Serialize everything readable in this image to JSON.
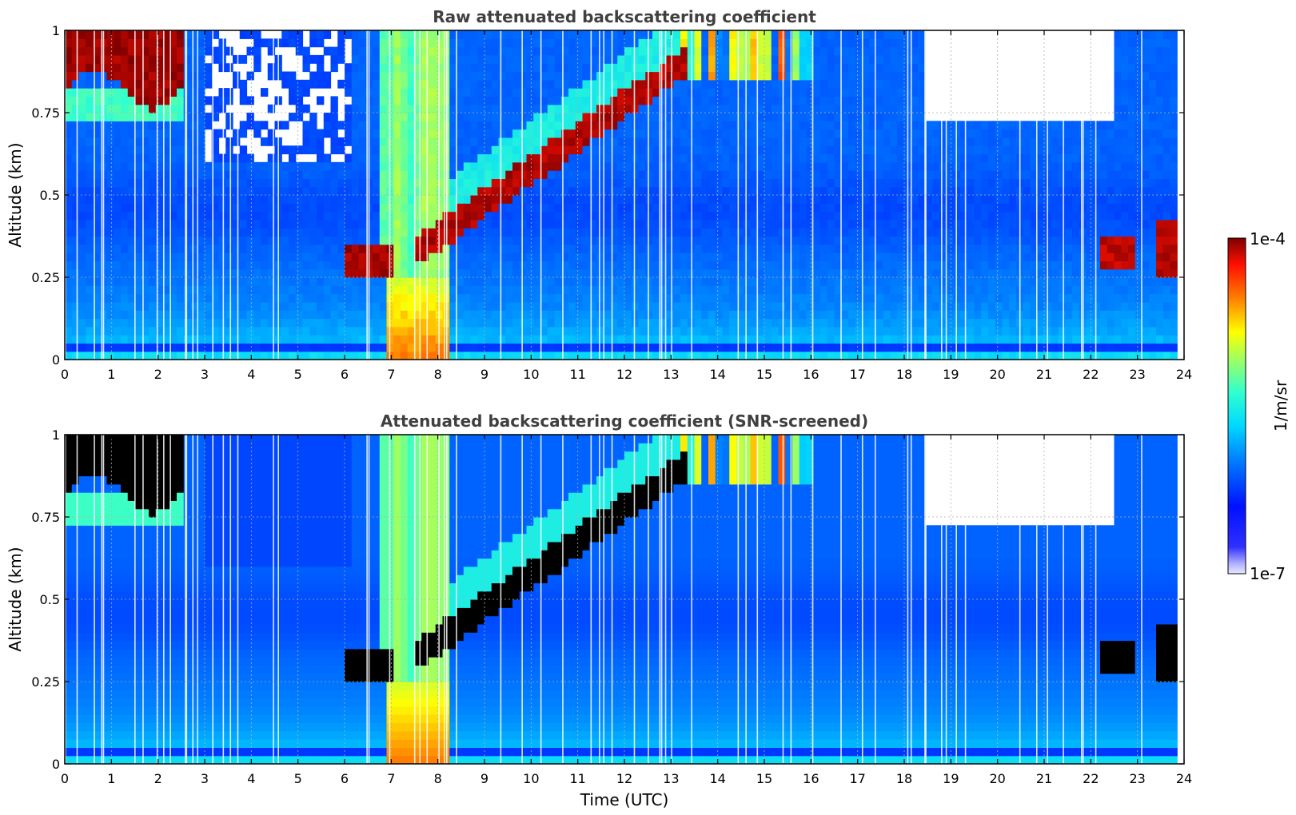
{
  "chart_data": [
    {
      "type": "heatmap",
      "title": "Raw attenuated backscattering coefficient",
      "xlabel": "",
      "ylabel": "Altitude (km)",
      "xlim": [
        0,
        24
      ],
      "ylim": [
        0,
        1
      ],
      "xticks": [
        "0",
        "1",
        "2",
        "3",
        "4",
        "5",
        "6",
        "7",
        "8",
        "9",
        "10",
        "11",
        "12",
        "13",
        "14",
        "15",
        "16",
        "17",
        "18",
        "19",
        "20",
        "21",
        "22",
        "23",
        "24"
      ],
      "yticks": [
        "0",
        "0.25",
        "0.5",
        "0.75",
        "1"
      ],
      "grid": true,
      "screened": false,
      "features": [
        {
          "label": "boundary layer / aerosol (light blue)",
          "time_range": [
            0,
            24
          ],
          "altitude_range": [
            0,
            0.35
          ]
        },
        {
          "label": "fog / dense layer (red-orange)",
          "time_range": [
            7.0,
            8.2
          ],
          "altitude_range": [
            0,
            0.2
          ]
        },
        {
          "label": "cloud layer (dark red)",
          "time_range": [
            6.0,
            7.0
          ],
          "altitude_range": [
            0.25,
            0.35
          ]
        },
        {
          "label": "rising cloud base (dark red)",
          "time_range": [
            7.5,
            13.2
          ],
          "altitude_range": [
            0.28,
            0.85
          ]
        },
        {
          "label": "upper cloud (dark red)",
          "time_range": [
            0,
            2.6
          ],
          "altitude_range": [
            0.8,
            1.0
          ]
        },
        {
          "label": "late cloud (dark red)",
          "time_range": [
            22.2,
            22.9
          ],
          "altitude_range": [
            0.27,
            0.37
          ]
        },
        {
          "label": "late cloud (dark red)",
          "time_range": [
            23.4,
            23.8
          ],
          "altitude_range": [
            0.25,
            0.4
          ]
        }
      ]
    },
    {
      "type": "heatmap",
      "title": "Attenuated backscattering coefficient (SNR-screened)",
      "xlabel": "Time (UTC)",
      "ylabel": "Altitude (km)",
      "xlim": [
        0,
        24
      ],
      "ylim": [
        0,
        1
      ],
      "xticks": [
        "0",
        "1",
        "2",
        "3",
        "4",
        "5",
        "6",
        "7",
        "8",
        "9",
        "10",
        "11",
        "12",
        "13",
        "14",
        "15",
        "16",
        "17",
        "18",
        "19",
        "20",
        "21",
        "22",
        "23",
        "24"
      ],
      "yticks": [
        "0",
        "0.25",
        "0.5",
        "0.75",
        "1"
      ],
      "grid": true,
      "screened": true
    }
  ],
  "colorbar": {
    "label": "1/m/sr",
    "max_label": "1e-4",
    "min_label": "1e-7",
    "scale": "log",
    "range": [
      1e-07,
      0.0001
    ],
    "colormap": "jet"
  }
}
